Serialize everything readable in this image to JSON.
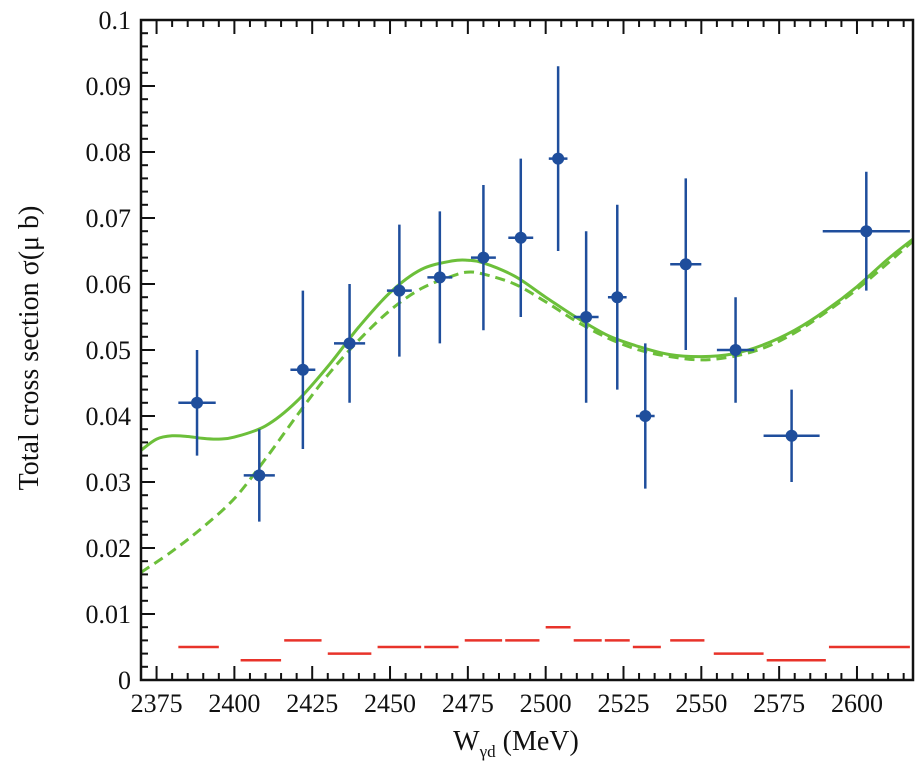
{
  "chart_data": {
    "type": "scatter",
    "xlabel": {
      "main": "W",
      "subscript": "γd",
      "unit": "(MeV)"
    },
    "ylabel": "Total cross section σ(μ b)",
    "xlim": [
      2370,
      2618
    ],
    "ylim": [
      0,
      0.1
    ],
    "x_ticks": [
      {
        "value": 2375,
        "label": "2375"
      },
      {
        "value": 2400,
        "label": "2400"
      },
      {
        "value": 2425,
        "label": "2425"
      },
      {
        "value": 2450,
        "label": "2450"
      },
      {
        "value": 2475,
        "label": "2475"
      },
      {
        "value": 2500,
        "label": "2500"
      },
      {
        "value": 2525,
        "label": "2525"
      },
      {
        "value": 2550,
        "label": "2550"
      },
      {
        "value": 2575,
        "label": "2575"
      },
      {
        "value": 2600,
        "label": "2600"
      }
    ],
    "y_ticks": [
      {
        "value": 0,
        "label": "0"
      },
      {
        "value": 0.01,
        "label": "0.01"
      },
      {
        "value": 0.02,
        "label": "0.02"
      },
      {
        "value": 0.03,
        "label": "0.03"
      },
      {
        "value": 0.04,
        "label": "0.04"
      },
      {
        "value": 0.05,
        "label": "0.05"
      },
      {
        "value": 0.06,
        "label": "0.06"
      },
      {
        "value": 0.07,
        "label": "0.07"
      },
      {
        "value": 0.08,
        "label": "0.08"
      },
      {
        "value": 0.09,
        "label": "0.09"
      },
      {
        "value": 0.1,
        "label": "0.1"
      }
    ],
    "colors": {
      "data": "#1f4e9c",
      "solid_curve": "#6cbf3a",
      "dashed_curve": "#6cbf3a",
      "systematic": "#e8332a"
    },
    "series": [
      {
        "kind": "data-points",
        "points": [
          {
            "x": 2388,
            "y": 0.042,
            "xerr": 6,
            "ylow": 0.034,
            "yhigh": 0.05
          },
          {
            "x": 2408,
            "y": 0.031,
            "xerr": 5,
            "ylow": 0.024,
            "yhigh": 0.038
          },
          {
            "x": 2422,
            "y": 0.047,
            "xerr": 4,
            "ylow": 0.035,
            "yhigh": 0.059
          },
          {
            "x": 2437,
            "y": 0.051,
            "xerr": 5,
            "ylow": 0.042,
            "yhigh": 0.06
          },
          {
            "x": 2453,
            "y": 0.059,
            "xerr": 4,
            "ylow": 0.049,
            "yhigh": 0.069
          },
          {
            "x": 2466,
            "y": 0.061,
            "xerr": 4,
            "ylow": 0.051,
            "yhigh": 0.071
          },
          {
            "x": 2480,
            "y": 0.064,
            "xerr": 4,
            "ylow": 0.053,
            "yhigh": 0.075
          },
          {
            "x": 2492,
            "y": 0.067,
            "xerr": 4,
            "ylow": 0.055,
            "yhigh": 0.079
          },
          {
            "x": 2504,
            "y": 0.079,
            "xerr": 3,
            "ylow": 0.065,
            "yhigh": 0.093
          },
          {
            "x": 2513,
            "y": 0.055,
            "xerr": 4,
            "ylow": 0.042,
            "yhigh": 0.068
          },
          {
            "x": 2523,
            "y": 0.058,
            "xerr": 3,
            "ylow": 0.044,
            "yhigh": 0.072
          },
          {
            "x": 2532,
            "y": 0.04,
            "xerr": 3,
            "ylow": 0.029,
            "yhigh": 0.051
          },
          {
            "x": 2545,
            "y": 0.063,
            "xerr": 5,
            "ylow": 0.05,
            "yhigh": 0.076
          },
          {
            "x": 2561,
            "y": 0.05,
            "xerr": 6,
            "ylow": 0.042,
            "yhigh": 0.058
          },
          {
            "x": 2579,
            "y": 0.037,
            "xerr": 9,
            "ylow": 0.03,
            "yhigh": 0.044
          },
          {
            "x": 2603,
            "y": 0.068,
            "xerr": 14,
            "ylow": 0.059,
            "yhigh": 0.077
          }
        ]
      },
      {
        "kind": "solid-curve",
        "x": [
          2370,
          2375,
          2380,
          2385,
          2390,
          2395,
          2400,
          2410,
          2420,
          2430,
          2440,
          2450,
          2460,
          2470,
          2475,
          2480,
          2490,
          2500,
          2510,
          2520,
          2530,
          2540,
          2550,
          2560,
          2570,
          2580,
          2590,
          2600,
          2610,
          2618
        ],
        "y": [
          0.0348,
          0.0365,
          0.037,
          0.0369,
          0.0366,
          0.0365,
          0.0368,
          0.0385,
          0.0422,
          0.0475,
          0.0535,
          0.0587,
          0.0622,
          0.0635,
          0.0636,
          0.0632,
          0.0612,
          0.058,
          0.0549,
          0.0522,
          0.0505,
          0.0493,
          0.049,
          0.0494,
          0.0508,
          0.053,
          0.056,
          0.0596,
          0.0638,
          0.0668
        ]
      },
      {
        "kind": "dashed-curve",
        "x": [
          2370,
          2380,
          2390,
          2400,
          2410,
          2420,
          2430,
          2440,
          2450,
          2460,
          2470,
          2475,
          2480,
          2490,
          2500,
          2510,
          2520,
          2530,
          2540,
          2550,
          2560,
          2570,
          2580,
          2590,
          2600,
          2610,
          2618
        ],
        "y": [
          0.0163,
          0.0195,
          0.0232,
          0.0275,
          0.0335,
          0.04,
          0.0462,
          0.0515,
          0.056,
          0.0593,
          0.0612,
          0.0618,
          0.0615,
          0.06,
          0.0573,
          0.0543,
          0.0518,
          0.05,
          0.049,
          0.0485,
          0.049,
          0.0503,
          0.0526,
          0.0557,
          0.0592,
          0.0632,
          0.0665
        ]
      },
      {
        "kind": "systematic-bars",
        "bins": [
          {
            "x0": 2382,
            "x1": 2395,
            "y": 0.005
          },
          {
            "x0": 2402,
            "x1": 2415,
            "y": 0.003
          },
          {
            "x0": 2416,
            "x1": 2428,
            "y": 0.006
          },
          {
            "x0": 2430,
            "x1": 2444,
            "y": 0.004
          },
          {
            "x0": 2446,
            "x1": 2460,
            "y": 0.005
          },
          {
            "x0": 2461,
            "x1": 2472,
            "y": 0.005
          },
          {
            "x0": 2474,
            "x1": 2486,
            "y": 0.006
          },
          {
            "x0": 2487,
            "x1": 2498,
            "y": 0.006
          },
          {
            "x0": 2500,
            "x1": 2508,
            "y": 0.008
          },
          {
            "x0": 2509,
            "x1": 2518,
            "y": 0.006
          },
          {
            "x0": 2519,
            "x1": 2527,
            "y": 0.006
          },
          {
            "x0": 2528,
            "x1": 2537,
            "y": 0.005
          },
          {
            "x0": 2540,
            "x1": 2551,
            "y": 0.006
          },
          {
            "x0": 2554,
            "x1": 2570,
            "y": 0.004
          },
          {
            "x0": 2571,
            "x1": 2590,
            "y": 0.003
          },
          {
            "x0": 2591,
            "x1": 2617,
            "y": 0.005
          }
        ]
      }
    ]
  }
}
